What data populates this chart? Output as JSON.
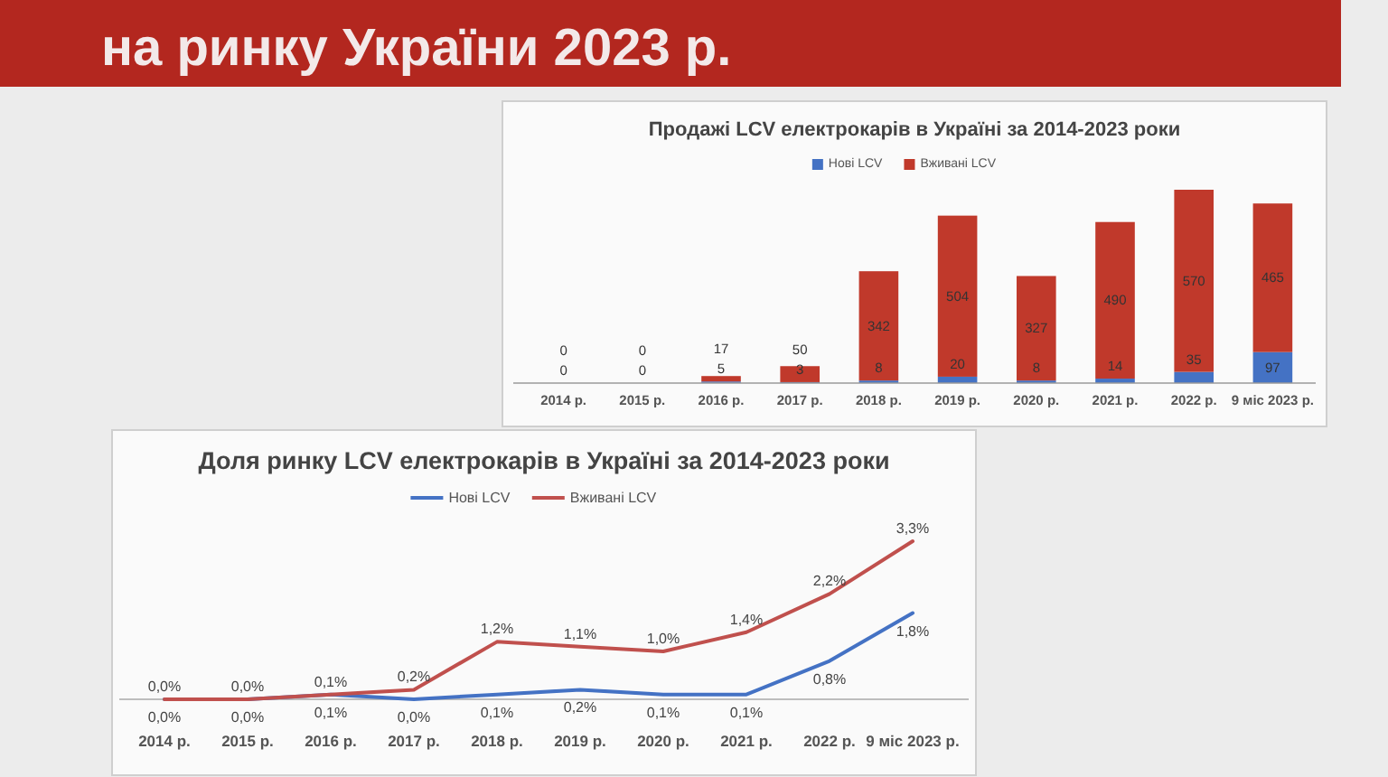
{
  "chart_data": [
    {
      "type": "other",
      "title": "на ринку України 2023 р."
    },
    {
      "type": "bar",
      "title": "Продажі LCV електрокарів в Україні за 2014-2023 роки",
      "categories": [
        "2014 р.",
        "2015 р.",
        "2016 р.",
        "2017 р.",
        "2018 р.",
        "2019 р.",
        "2020 р.",
        "2021 р.",
        "2022 р.",
        "9 міс 2023 р."
      ],
      "stacked": true,
      "data_labels": true,
      "legend": "top",
      "tick_labels": "x",
      "series": [
        {
          "name": "Нові LCV",
          "color": "#4472c4",
          "values": [
            0,
            0,
            5,
            3,
            8,
            20,
            8,
            14,
            35,
            97
          ]
        },
        {
          "name": "Вживані LCV",
          "color": "#c0392b",
          "values": [
            0,
            0,
            17,
            50,
            342,
            504,
            327,
            490,
            570,
            465
          ]
        }
      ]
    },
    {
      "type": "line",
      "title": "Доля ринку LCV електрокарів в Україні за 2014-2023 роки",
      "categories": [
        "2014 р.",
        "2015 р.",
        "2016 р.",
        "2017 р.",
        "2018 р.",
        "2019 р.",
        "2020 р.",
        "2021 р.",
        "2022 р.",
        "9 міс 2023 р."
      ],
      "legend": "top",
      "tick_labels": "x",
      "series": [
        {
          "name": "Нові LCV",
          "color": "#4472c4",
          "values": [
            0.0,
            0.0,
            0.1,
            0.0,
            0.1,
            0.2,
            0.1,
            0.1,
            0.8,
            1.8
          ],
          "value_labels": [
            "0,0%",
            "0,0%",
            "0,1%",
            "0,0%",
            "0,1%",
            "0,2%",
            "0,1%",
            "0,1%",
            "0,8%",
            "1,8%"
          ]
        },
        {
          "name": "Вживані LCV",
          "color": "#c0504d",
          "values": [
            0.0,
            0.0,
            0.1,
            0.2,
            1.2,
            1.1,
            1.0,
            1.4,
            2.2,
            3.3
          ],
          "value_labels": [
            "0,0%",
            "0,0%",
            "0,1%",
            "0,2%",
            "1,2%",
            "1,1%",
            "1,0%",
            "1,4%",
            "2,2%",
            "3,3%"
          ]
        }
      ]
    }
  ]
}
